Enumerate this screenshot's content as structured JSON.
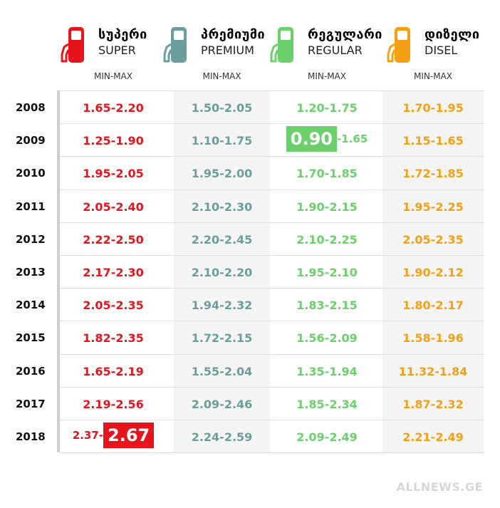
{
  "columns": [
    {
      "key": "super",
      "geo": "სუპერი",
      "lat": "SUPER",
      "color": "#e8141c",
      "sub": "MIN-MAX"
    },
    {
      "key": "premium",
      "geo": "პრემიუმი",
      "lat": "PREMIUM",
      "color": "#6a9e9c",
      "sub": "MIN-MAX"
    },
    {
      "key": "regular",
      "geo": "რეგულარი",
      "lat": "REGULAR",
      "color": "#6bd06b",
      "sub": "MIN-MAX"
    },
    {
      "key": "disel",
      "geo": "დიზელი",
      "lat": "DISEL",
      "color": "#f5a014",
      "sub": "MIN-MAX"
    }
  ],
  "chart_data": {
    "type": "table",
    "columns": [
      "SUPER",
      "PREMIUM",
      "REGULAR",
      "DISEL"
    ],
    "rows": [
      {
        "year": "2008",
        "values": [
          "1.65-2.20",
          "1.50-2.05",
          "1.20-1.75",
          "1.70-1.95"
        ]
      },
      {
        "year": "2009",
        "values": [
          "1.25-1.90",
          "1.10-1.75",
          "0.90-1.65",
          "1.15-1.65"
        ]
      },
      {
        "year": "2010",
        "values": [
          "1.95-2.05",
          "1.95-2.00",
          "1.70-1.85",
          "1.72-1.85"
        ]
      },
      {
        "year": "2011",
        "values": [
          "2.05-2.40",
          "2.10-2.30",
          "1.90-2.15",
          "1.95-2.25"
        ]
      },
      {
        "year": "2012",
        "values": [
          "2.22-2.50",
          "2.20-2.45",
          "2.10-2.25",
          "2.05-2.35"
        ]
      },
      {
        "year": "2013",
        "values": [
          "2.17-2.30",
          "2.10-2.20",
          "1.95-2.10",
          "1.90-2.12"
        ]
      },
      {
        "year": "2014",
        "values": [
          "2.05-2.35",
          "1.94-2.32",
          "1.83-2.15",
          "1.80-2.17"
        ]
      },
      {
        "year": "2015",
        "values": [
          "1.82-2.35",
          "1.72-2.15",
          "1.56-2.09",
          "1.58-1.96"
        ]
      },
      {
        "year": "2016",
        "values": [
          "1.65-2.19",
          "1.55-2.04",
          "1.35-1.94",
          "11.32-1.84"
        ]
      },
      {
        "year": "2017",
        "values": [
          "2.19-2.56",
          "2.09-2.46",
          "1.85-2.34",
          "1.87-2.32"
        ]
      },
      {
        "year": "2018",
        "values": [
          "2.37-2.67",
          "2.24-2.59",
          "2.09-2.49",
          "2.21-2.49"
        ]
      }
    ],
    "highlights": [
      {
        "year": "2009",
        "column": "REGULAR",
        "part": "min",
        "value": "0.90",
        "rest": "-1.65"
      },
      {
        "year": "2018",
        "column": "SUPER",
        "part": "max",
        "value": "2.67",
        "rest": "2.37-"
      }
    ]
  },
  "credit": "ALLNEWS.GE"
}
